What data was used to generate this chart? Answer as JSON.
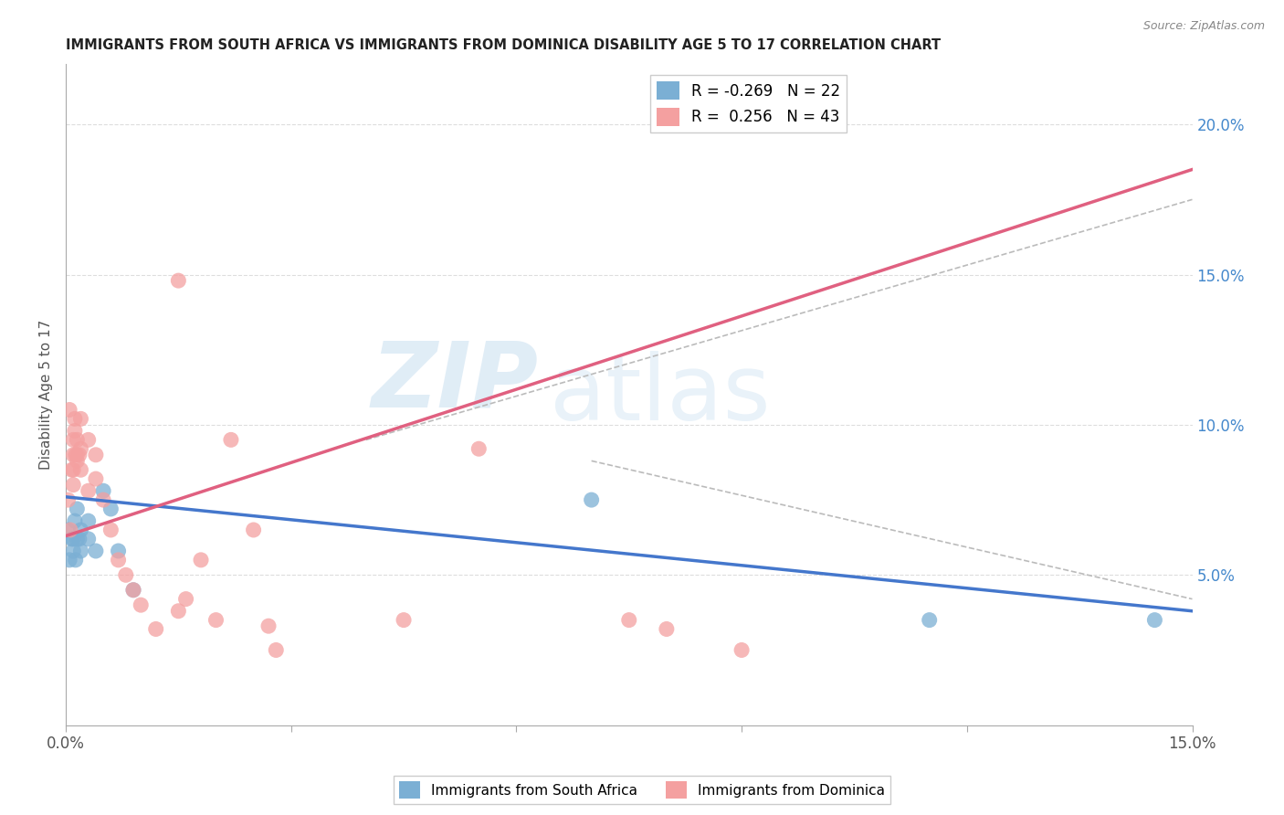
{
  "title": "IMMIGRANTS FROM SOUTH AFRICA VS IMMIGRANTS FROM DOMINICA DISABILITY AGE 5 TO 17 CORRELATION CHART",
  "source": "Source: ZipAtlas.com",
  "ylabel": "Disability Age 5 to 17",
  "xmin": 0.0,
  "xmax": 0.15,
  "ymin": 0.0,
  "ymax": 0.22,
  "right_yticks": [
    0.05,
    0.1,
    0.15,
    0.2
  ],
  "right_yticklabels": [
    "5.0%",
    "10.0%",
    "15.0%",
    "20.0%"
  ],
  "south_africa_color": "#7BAFD4",
  "dominica_color": "#F4A0A0",
  "trendline_sa_color": "#4477CC",
  "trendline_dom_color": "#E06080",
  "south_africa_R": -0.269,
  "south_africa_N": 22,
  "dominica_R": 0.256,
  "dominica_N": 43,
  "sa_legend_label": "Immigrants from South Africa",
  "dom_legend_label": "Immigrants from Dominica",
  "watermark_zip": "ZIP",
  "watermark_atlas": "atlas",
  "background_color": "#ffffff",
  "grid_color": "#dddddd",
  "south_africa_x": [
    0.0003,
    0.0005,
    0.0008,
    0.001,
    0.001,
    0.0012,
    0.0013,
    0.0015,
    0.0015,
    0.0018,
    0.002,
    0.002,
    0.003,
    0.003,
    0.004,
    0.005,
    0.006,
    0.007,
    0.009,
    0.07,
    0.115,
    0.145
  ],
  "south_africa_y": [
    0.065,
    0.055,
    0.062,
    0.058,
    0.062,
    0.068,
    0.055,
    0.072,
    0.062,
    0.062,
    0.065,
    0.058,
    0.068,
    0.062,
    0.058,
    0.078,
    0.072,
    0.058,
    0.045,
    0.075,
    0.035,
    0.035
  ],
  "dominica_x": [
    0.0003,
    0.0005,
    0.0006,
    0.0008,
    0.001,
    0.001,
    0.001,
    0.001,
    0.0012,
    0.0012,
    0.0013,
    0.0015,
    0.0015,
    0.0015,
    0.0018,
    0.002,
    0.002,
    0.002,
    0.003,
    0.003,
    0.004,
    0.004,
    0.005,
    0.006,
    0.007,
    0.008,
    0.009,
    0.01,
    0.012,
    0.015,
    0.015,
    0.016,
    0.018,
    0.02,
    0.022,
    0.025,
    0.027,
    0.028,
    0.045,
    0.055,
    0.075,
    0.08,
    0.09
  ],
  "dominica_y": [
    0.075,
    0.105,
    0.065,
    0.085,
    0.08,
    0.09,
    0.095,
    0.085,
    0.098,
    0.102,
    0.09,
    0.09,
    0.095,
    0.088,
    0.09,
    0.092,
    0.102,
    0.085,
    0.095,
    0.078,
    0.09,
    0.082,
    0.075,
    0.065,
    0.055,
    0.05,
    0.045,
    0.04,
    0.032,
    0.038,
    0.148,
    0.042,
    0.055,
    0.035,
    0.095,
    0.065,
    0.033,
    0.025,
    0.035,
    0.092,
    0.035,
    0.032,
    0.025
  ],
  "sa_trendline_x": [
    0.0,
    0.15
  ],
  "sa_trendline_y": [
    0.076,
    0.038
  ],
  "dom_trendline_x": [
    0.0,
    0.15
  ],
  "dom_trendline_y": [
    0.063,
    0.185
  ]
}
